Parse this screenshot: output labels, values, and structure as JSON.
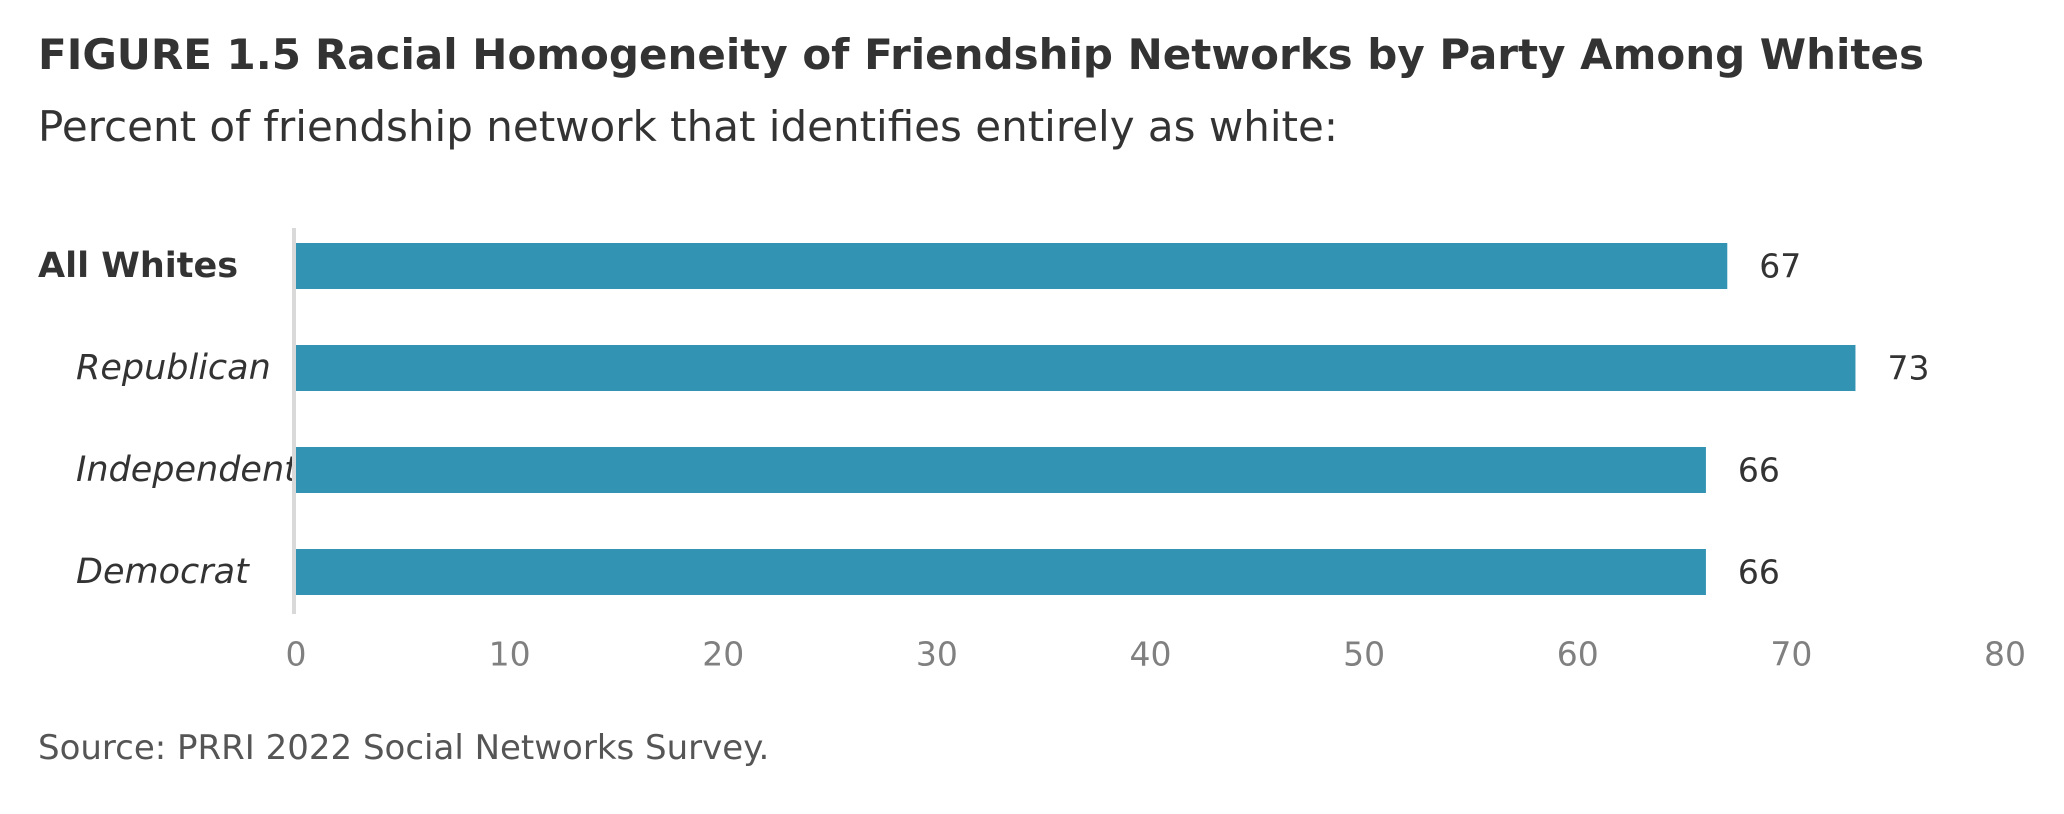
{
  "header": {
    "figure_number": "FIGURE 1.5",
    "title": "Racial Homogeneity of Friendship Networks by Party Among Whites",
    "subtitle": "Percent of friendship network that identifies entirely as white:"
  },
  "footer": {
    "source": "Source: PRRI 2022 Social Networks Survey."
  },
  "colors": {
    "bar": "#3293B2",
    "axis": "#D9D9D9",
    "tick_text": "#808080",
    "text": "#333333"
  },
  "chart_data": {
    "type": "bar",
    "orientation": "horizontal",
    "categories": [
      "All Whites",
      "Republican",
      "Independent",
      "Democrat"
    ],
    "category_styles": [
      "bold",
      "italic",
      "italic",
      "italic"
    ],
    "values": [
      67,
      73,
      66,
      66
    ],
    "data_labels": [
      "67",
      "73",
      "66",
      "66"
    ],
    "title": "Racial Homogeneity of Friendship Networks by Party Among Whites",
    "subtitle": "Percent of friendship network that identifies entirely as white:",
    "xlim": [
      0,
      80
    ],
    "xticks": [
      0,
      10,
      20,
      30,
      40,
      50,
      60,
      70,
      80
    ],
    "grid": false,
    "legend": "none"
  }
}
